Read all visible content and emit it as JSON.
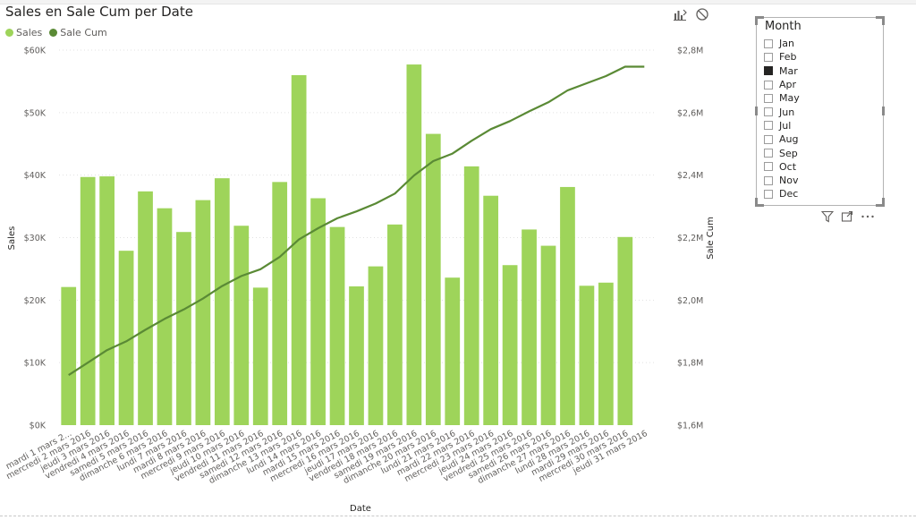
{
  "visual": {
    "title": "Sales en Sale Cum per Date",
    "legend": [
      {
        "label": "Sales",
        "color": "#9ED45A"
      },
      {
        "label": "Sale Cum",
        "color": "#5A8A35"
      }
    ],
    "icons": [
      "drill-icon",
      "no-filter-icon"
    ]
  },
  "chart_data": {
    "type": "bar",
    "combo": "bar+line",
    "xlabel": "Date",
    "ylabel": "Sales",
    "y2label": "Sale Cum",
    "ylim": [
      0,
      60000
    ],
    "y2lim": [
      1600000,
      2800000
    ],
    "yticks": [
      {
        "value": 0,
        "label": "$0K"
      },
      {
        "value": 10000,
        "label": "$10K"
      },
      {
        "value": 20000,
        "label": "$20K"
      },
      {
        "value": 30000,
        "label": "$30K"
      },
      {
        "value": 40000,
        "label": "$40K"
      },
      {
        "value": 50000,
        "label": "$50K"
      },
      {
        "value": 60000,
        "label": "$60K"
      }
    ],
    "y2ticks": [
      {
        "value": 1600000,
        "label": "$1,6M"
      },
      {
        "value": 1800000,
        "label": "$1,8M"
      },
      {
        "value": 2000000,
        "label": "$2,0M"
      },
      {
        "value": 2200000,
        "label": "$2,2M"
      },
      {
        "value": 2400000,
        "label": "$2,4M"
      },
      {
        "value": 2600000,
        "label": "$2,6M"
      },
      {
        "value": 2800000,
        "label": "$2,8M"
      }
    ],
    "grid": true,
    "legend_position": "top-left",
    "categories": [
      "mardi 1 mars 2...",
      "mercredi 2 mars 2016",
      "jeudi 3 mars 2016",
      "vendredi 4 mars 2016",
      "samedi 5 mars 2016",
      "dimanche 6 mars 2016",
      "lundi 7 mars 2016",
      "mardi 8 mars 2016",
      "mercredi 9 mars 2016",
      "jeudi 10 mars 2016",
      "vendredi 11 mars 2016",
      "samedi 12 mars 2016",
      "dimanche 13 mars 2016",
      "lundi 14 mars 2016",
      "mardi 15 mars 2016",
      "mercredi 16 mars 2016",
      "jeudi 17 mars 2016",
      "vendredi 18 mars 2016",
      "samedi 19 mars 2016",
      "dimanche 20 mars 2016",
      "lundi 21 mars 2016",
      "mardi 22 mars 2016",
      "mercredi 23 mars 2016",
      "jeudi 24 mars 2016",
      "vendredi 25 mars 2016",
      "samedi 26 mars 2016",
      "dimanche 27 mars 2016",
      "lundi 28 mars 2016",
      "mardi 29 mars 2016",
      "mercredi 30 mars 2016",
      "jeudi 31 mars 2016"
    ],
    "series": [
      {
        "name": "Sales",
        "type": "bar",
        "axis": "left",
        "color": "#9ED45A",
        "values": [
          22100,
          39700,
          39800,
          27900,
          37400,
          34700,
          30900,
          36000,
          39500,
          31900,
          22000,
          38900,
          56000,
          36300,
          31700,
          22200,
          25400,
          32100,
          57700,
          46600,
          23600,
          41400,
          36700,
          25600,
          31300,
          28700,
          38100,
          22300,
          22800,
          30100,
          0
        ]
      },
      {
        "name": "Sale Cum",
        "type": "line",
        "axis": "right",
        "color": "#5A8A35",
        "values": [
          1760000,
          1800000,
          1840000,
          1868000,
          1905000,
          1940000,
          1970000,
          2005000,
          2045000,
          2077000,
          2099000,
          2138000,
          2194000,
          2230000,
          2262000,
          2284000,
          2309000,
          2341000,
          2399000,
          2445000,
          2469000,
          2510000,
          2547000,
          2573000,
          2604000,
          2633000,
          2671000,
          2694000,
          2717000,
          2747000,
          2747000
        ]
      }
    ]
  },
  "slicer": {
    "title": "Month",
    "items": [
      {
        "label": "Jan",
        "checked": false
      },
      {
        "label": "Feb",
        "checked": false
      },
      {
        "label": "Mar",
        "checked": true
      },
      {
        "label": "Apr",
        "checked": false
      },
      {
        "label": "May",
        "checked": false
      },
      {
        "label": "Jun",
        "checked": false
      },
      {
        "label": "Jul",
        "checked": false
      },
      {
        "label": "Aug",
        "checked": false
      },
      {
        "label": "Sep",
        "checked": false
      },
      {
        "label": "Oct",
        "checked": false
      },
      {
        "label": "Nov",
        "checked": false
      },
      {
        "label": "Dec",
        "checked": false
      }
    ],
    "actions": [
      "filter-icon",
      "focus-mode-icon",
      "more-options-icon"
    ]
  }
}
